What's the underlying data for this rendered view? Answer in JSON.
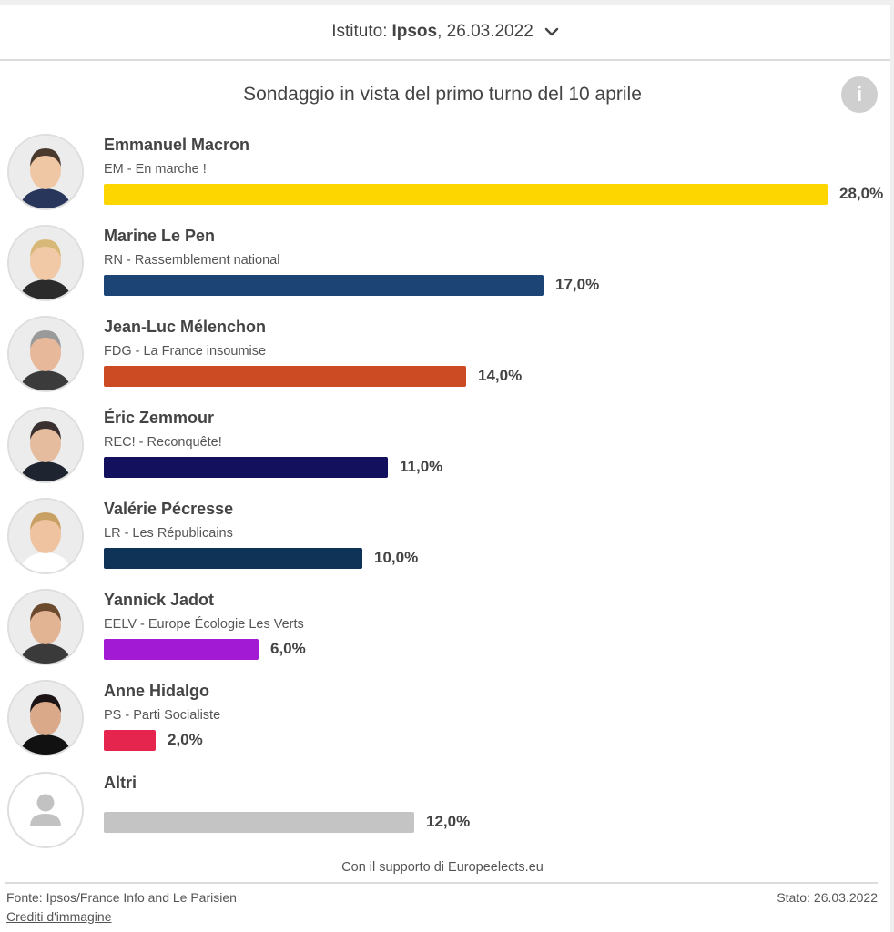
{
  "header": {
    "institute_label": "Istituto:",
    "institute_name": "Ipsos",
    "institute_date": ", 26.03.2022"
  },
  "title": "Sondaggio in vista del primo turno del 10 aprile",
  "info_label": "i",
  "chart_data": {
    "type": "bar",
    "orientation": "horizontal",
    "xlim": [
      0,
      28
    ],
    "categories": [
      "Emmanuel Macron",
      "Marine Le Pen",
      "Jean-Luc Mélenchon",
      "Éric Zemmour",
      "Valérie Pécresse",
      "Yannick Jadot",
      "Anne Hidalgo",
      "Altri"
    ],
    "values": [
      28.0,
      17.0,
      14.0,
      11.0,
      10.0,
      6.0,
      2.0,
      12.0
    ],
    "rows": [
      {
        "name": "Emmanuel Macron",
        "party": "EM - En marche !",
        "value": 28.0,
        "value_label": "28,0%",
        "color": "#fdd600"
      },
      {
        "name": "Marine Le Pen",
        "party": "RN - Rassemblement national",
        "value": 17.0,
        "value_label": "17,0%",
        "color": "#1c4475"
      },
      {
        "name": "Jean-Luc Mélenchon",
        "party": "FDG - La France insoumise",
        "value": 14.0,
        "value_label": "14,0%",
        "color": "#cc4b23"
      },
      {
        "name": "Éric Zemmour",
        "party": "REC! - Reconquête!",
        "value": 11.0,
        "value_label": "11,0%",
        "color": "#13115e"
      },
      {
        "name": "Valérie Pécresse",
        "party": "LR - Les Républicains",
        "value": 10.0,
        "value_label": "10,0%",
        "color": "#0e3357"
      },
      {
        "name": "Yannick Jadot",
        "party": "EELV - Europe Écologie Les Verts",
        "value": 6.0,
        "value_label": "6,0%",
        "color": "#a21ad3"
      },
      {
        "name": "Anne Hidalgo",
        "party": "PS - Parti Socialiste",
        "value": 2.0,
        "value_label": "2,0%",
        "color": "#e6254f"
      },
      {
        "name": "Altri",
        "party": "",
        "value": 12.0,
        "value_label": "12,0%",
        "color": "#c4c4c4"
      }
    ]
  },
  "footer": {
    "support": "Con il supporto di Europeelects.eu",
    "source": "Fonte: Ipsos/France Info and Le Parisien",
    "status_label": "Stato:",
    "status_date": "26.03.2022",
    "credits": "Crediti d'immagine"
  }
}
